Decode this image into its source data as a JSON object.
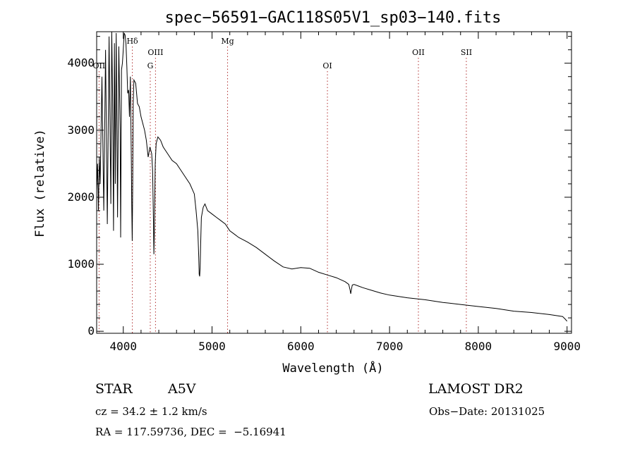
{
  "chart_data": {
    "type": "line",
    "title": "spec−56591−GAC118S05V1_sp03−140.fits",
    "xlabel": "Wavelength (Å)",
    "ylabel": "Flux (relative)",
    "xlim": [
      3700,
      9050
    ],
    "ylim": [
      -30,
      4470
    ],
    "xticks": [
      4000,
      5000,
      6000,
      7000,
      8000,
      9000
    ],
    "yticks": [
      0,
      1000,
      2000,
      3000,
      4000
    ],
    "grid": false,
    "series": [
      {
        "x": [
          3700,
          3710,
          3720,
          3730,
          3740,
          3760,
          3780,
          3800,
          3820,
          3840,
          3860,
          3870,
          3880,
          3890,
          3900,
          3910,
          3920,
          3935,
          3950,
          3965,
          3970,
          3980,
          3990,
          4000,
          4010,
          4020,
          4030,
          4040,
          4050,
          4060,
          4070,
          4080,
          4090,
          4095,
          4101,
          4106,
          4112,
          4120,
          4140,
          4160,
          4180,
          4200,
          4220,
          4240,
          4260,
          4280,
          4300,
          4320,
          4330,
          4340,
          4345,
          4350,
          4360,
          4370,
          4390,
          4420,
          4450,
          4500,
          4550,
          4600,
          4650,
          4700,
          4750,
          4800,
          4820,
          4840,
          4850,
          4855,
          4861,
          4866,
          4872,
          4880,
          4900,
          4920,
          4950,
          5000,
          5050,
          5100,
          5150,
          5200,
          5250,
          5300,
          5400,
          5500,
          5600,
          5700,
          5800,
          5900,
          6000,
          6100,
          6200,
          6300,
          6400,
          6500,
          6540,
          6555,
          6563,
          6570,
          6580,
          6600,
          6700,
          6800,
          6900,
          7000,
          7200,
          7400,
          7600,
          7800,
          8000,
          8200,
          8400,
          8600,
          8800,
          8950,
          8980,
          9000
        ],
        "y": [
          2100,
          2500,
          1800,
          2600,
          2200,
          3800,
          1800,
          4200,
          1600,
          4400,
          1900,
          4500,
          3500,
          1500,
          4300,
          2200,
          4450,
          1700,
          4250,
          3000,
          1400,
          3900,
          4000,
          4200,
          4450,
          4420,
          4300,
          3950,
          3550,
          3600,
          3200,
          3800,
          2600,
          1900,
          1350,
          2200,
          3400,
          3750,
          3700,
          3400,
          3350,
          3200,
          3100,
          3000,
          2850,
          2600,
          2750,
          2650,
          2400,
          1650,
          1150,
          1500,
          2500,
          2800,
          2900,
          2850,
          2750,
          2650,
          2550,
          2500,
          2400,
          2300,
          2200,
          2050,
          1800,
          1500,
          1100,
          850,
          820,
          950,
          1300,
          1700,
          1850,
          1900,
          1800,
          1750,
          1700,
          1650,
          1600,
          1500,
          1450,
          1400,
          1330,
          1250,
          1150,
          1050,
          960,
          930,
          950,
          940,
          880,
          840,
          800,
          740,
          700,
          620,
          560,
          620,
          690,
          700,
          650,
          610,
          570,
          540,
          500,
          470,
          430,
          400,
          370,
          340,
          300,
          280,
          250,
          220,
          180,
          150
        ]
      }
    ],
    "lines": [
      {
        "label": "OII",
        "x": 3727,
        "row": 2
      },
      {
        "label": "Hδ",
        "x": 4102,
        "row": 0
      },
      {
        "label": "G",
        "x": 4304,
        "row": 2
      },
      {
        "label": "OIII",
        "x": 4363,
        "row": 1
      },
      {
        "label": "Mg",
        "x": 5175,
        "row": 0
      },
      {
        "label": "OI",
        "x": 6300,
        "row": 2
      },
      {
        "label": "OII",
        "x": 7325,
        "row": 1
      },
      {
        "label": "SII",
        "x": 7865,
        "row": 1
      }
    ]
  },
  "info": {
    "object_class": "STAR",
    "subclass": "A5V",
    "survey": "LAMOST DR2",
    "cz": "cz = 34.2 ± 1.2 km/s",
    "obs_date": "Obs−Date: 20131025",
    "coords": "RA = 117.59736, DEC =  −5.16941"
  }
}
